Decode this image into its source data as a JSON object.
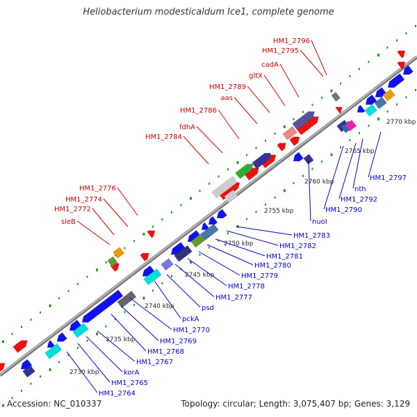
{
  "title": "Heliobacterium modesticaldum Ice1, complete genome",
  "footer": {
    "accession": "Accession: NC_010337",
    "stats": "Topology: circular; Length: 3,075,407 bp; Genes: 3,129"
  },
  "colors": {
    "backbone": "#999999",
    "plus_strand_label": "#cc0000",
    "minus_strand_label": "#0000cc",
    "tick": "#33aa33"
  },
  "map": {
    "tick_labels": [
      "2730 kbp",
      "2735 kbp",
      "2740 kbp",
      "2745 kbp",
      "2750 kbp",
      "2755 kbp",
      "2760 kbp",
      "2765 kbp",
      "2770 kbp"
    ],
    "plus_labels": [
      "HM1_2796",
      "HM1_2795",
      "cadA",
      "gltX",
      "HM1_2789",
      "aas",
      "HM1_2786",
      "fdhA",
      "HM1_2784",
      "HM1_2776",
      "HM1_2774",
      "HM1_2772",
      "sleB"
    ],
    "minus_labels": [
      "HM1_2797",
      "nth",
      "HM1_2792",
      "HM1_2790",
      "nuoI",
      "HM1_2783",
      "HM1_2782",
      "HM1_2781",
      "HM1_2780",
      "HM1_2779",
      "HM1_2778",
      "HM1_2777",
      "psd",
      "pckA",
      "HM1_2770",
      "HM1_2769",
      "HM1_2768",
      "HM1_2767",
      "korA",
      "HM1_2765",
      "HM1_2764"
    ]
  }
}
